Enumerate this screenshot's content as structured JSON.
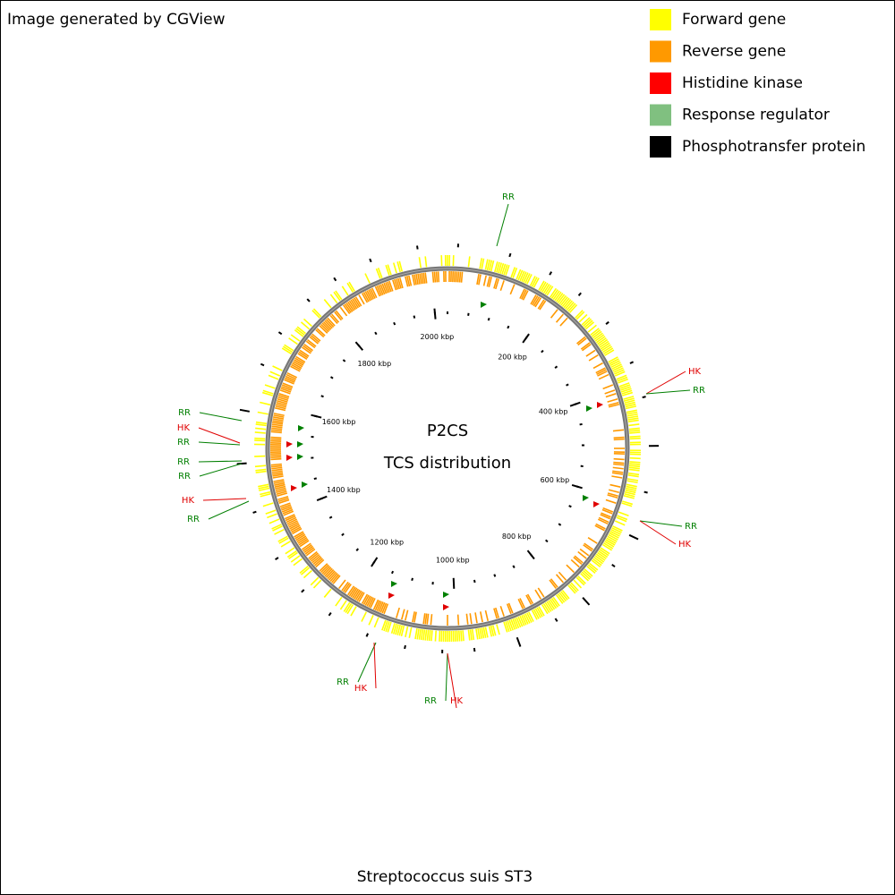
{
  "header": {
    "credit": "Image generated by CGView"
  },
  "legend": [
    {
      "label": "Forward gene",
      "color": "#ffff00"
    },
    {
      "label": "Reverse gene",
      "color": "#ff9900"
    },
    {
      "label": "Histidine kinase",
      "color": "#ff0000"
    },
    {
      "label": "Response regulator",
      "color": "#80c080"
    },
    {
      "label": "Phosphotransfer protein",
      "color": "#000000"
    }
  ],
  "map": {
    "title": "P2CS",
    "subtitle": "TCS distribution",
    "caption": "Streptococcus suis ST3",
    "ticks": [
      {
        "value": 200,
        "label": "200 kbp"
      },
      {
        "value": 400,
        "label": "400 kbp"
      },
      {
        "value": 600,
        "label": "600 kbp"
      },
      {
        "value": 800,
        "label": "800 kbp"
      },
      {
        "value": 1000,
        "label": "1000 kbp"
      },
      {
        "value": 1200,
        "label": "1200 kbp"
      },
      {
        "value": 1400,
        "label": "1400 kbp"
      },
      {
        "value": 1600,
        "label": "1600 kbp"
      },
      {
        "value": 1800,
        "label": "1800 kbp"
      },
      {
        "value": 2000,
        "label": "2000 kbp"
      }
    ],
    "features": [
      {
        "label": "RR",
        "color": "#007f00"
      },
      {
        "label": "HK",
        "color": "#e00000"
      },
      {
        "label": "RR",
        "color": "#007f00"
      },
      {
        "label": "RR",
        "color": "#007f00"
      },
      {
        "label": "HK",
        "color": "#e00000"
      },
      {
        "label": "RR",
        "color": "#007f00"
      },
      {
        "label": "HK",
        "color": "#e00000"
      },
      {
        "label": "RR",
        "color": "#007f00"
      },
      {
        "label": "HK",
        "color": "#e00000"
      },
      {
        "label": "RR",
        "color": "#007f00"
      },
      {
        "label": "HK",
        "color": "#e00000"
      },
      {
        "label": "RR",
        "color": "#007f00"
      },
      {
        "label": "RR",
        "color": "#007f00"
      },
      {
        "label": "RR",
        "color": "#007f00"
      },
      {
        "label": "HK",
        "color": "#e00000"
      },
      {
        "label": "RR",
        "color": "#007f00"
      }
    ]
  }
}
